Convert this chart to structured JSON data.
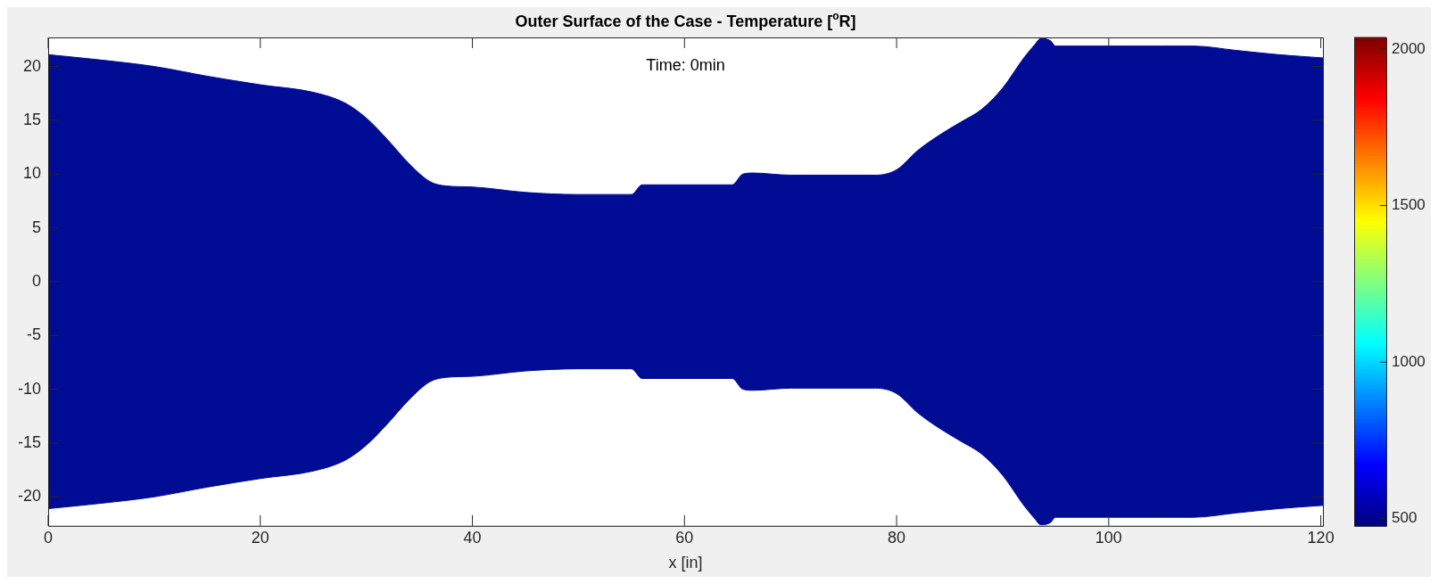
{
  "chart_data": {
    "type": "area",
    "title": "Outer Surface of the Case - Temperature [$^{o}$R]",
    "xlabel": "x [in]",
    "annotations": [
      "Time: 0min"
    ],
    "x": [
      0,
      5,
      10,
      15,
      20,
      25,
      28,
      30,
      32,
      34,
      36,
      37.5,
      40,
      45,
      50,
      55,
      56,
      64.5,
      65.5,
      66.5,
      70,
      78,
      80,
      82,
      84,
      86,
      88,
      90,
      92,
      93,
      93.6,
      94.5,
      95,
      100,
      105,
      108,
      112,
      116,
      120.2
    ],
    "series": [
      {
        "color": "#000c94",
        "values": [
          21.1,
          20.6,
          20.0,
          19.1,
          18.3,
          17.6,
          16.6,
          15.2,
          13.2,
          11.0,
          9.3,
          8.9,
          8.8,
          8.3,
          8.1,
          8.1,
          9.0,
          9.0,
          10.0,
          10.1,
          9.9,
          9.9,
          10.4,
          12.2,
          13.6,
          14.8,
          16.0,
          18.0,
          20.8,
          22.0,
          22.6,
          22.4,
          21.9,
          21.9,
          21.9,
          21.9,
          21.5,
          21.1,
          20.8
        ]
      },
      {
        "color": "#000c94",
        "values": [
          -21.1,
          -20.6,
          -20.0,
          -19.1,
          -18.3,
          -17.6,
          -16.6,
          -15.2,
          -13.2,
          -11.0,
          -9.3,
          -8.9,
          -8.8,
          -8.3,
          -8.1,
          -8.1,
          -9.0,
          -9.0,
          -10.0,
          -10.1,
          -9.9,
          -9.9,
          -10.4,
          -12.2,
          -13.6,
          -14.8,
          -16.0,
          -18.0,
          -20.8,
          -22.0,
          -22.6,
          -22.4,
          -21.9,
          -21.9,
          -21.9,
          -21.9,
          -21.5,
          -21.1,
          -20.8
        ]
      }
    ],
    "xlim": [
      0,
      120.2
    ],
    "xticks": [
      0,
      20,
      40,
      60,
      80,
      100,
      120
    ],
    "ylim": [
      -22.7,
      22.7
    ],
    "yticks": [
      -20,
      -15,
      -10,
      -5,
      0,
      5,
      10,
      15,
      20
    ],
    "clim": [
      477,
      2037
    ],
    "cticks": [
      500,
      1000,
      1500,
      2000
    ],
    "grid": false,
    "legend": false
  }
}
